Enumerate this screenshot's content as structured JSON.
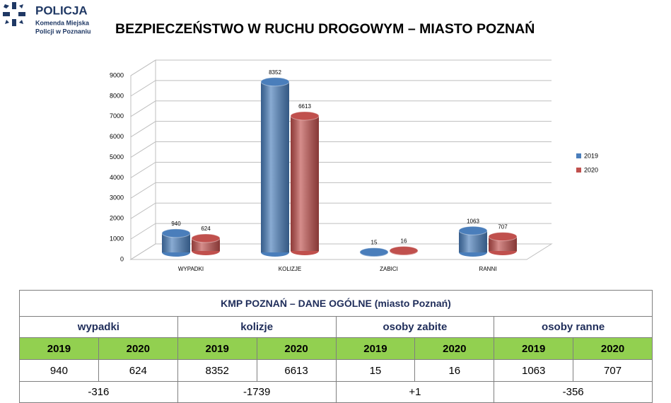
{
  "header": {
    "logo_title": "POLICJA",
    "logo_line1": "Komenda Miejska",
    "logo_line2": "Policji w Poznaniu",
    "title": "BEZPIECZEŃSTWO W RUCHU DROGOWYM – MIASTO POZNAŃ"
  },
  "chart_data": {
    "type": "bar",
    "categories": [
      "WYPADKI",
      "KOLIZJE",
      "ZABICI",
      "RANNI"
    ],
    "series": [
      {
        "name": "2019",
        "color": "#4a7ebb",
        "values": [
          940,
          8352,
          15,
          1063
        ]
      },
      {
        "name": "2020",
        "color": "#c0504d",
        "values": [
          624,
          6613,
          16,
          707
        ]
      }
    ],
    "ylim": [
      0,
      9000
    ],
    "yticks": [
      0,
      1000,
      2000,
      3000,
      4000,
      5000,
      6000,
      7000,
      8000,
      9000
    ],
    "grid": true,
    "legend": "right"
  },
  "table": {
    "title": "KMP POZNAŃ – DANE OGÓLNE (miasto Poznań)",
    "groups": [
      "wypadki",
      "kolizje",
      "osoby zabite",
      "osoby ranne"
    ],
    "years": [
      "2019",
      "2020"
    ],
    "values": [
      "940",
      "624",
      "8352",
      "6613",
      "15",
      "16",
      "1063",
      "707"
    ],
    "differences": [
      "-316",
      "-1739",
      "+1",
      "-356"
    ]
  }
}
